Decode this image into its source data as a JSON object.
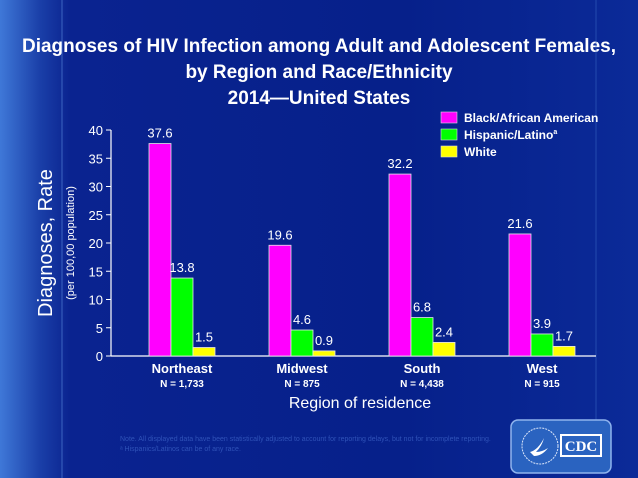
{
  "title_lines": [
    "Diagnoses of HIV Infection among Adult and Adolescent Females,",
    "by Region and Race/Ethnicity",
    "2014—United States"
  ],
  "chart_data": {
    "type": "bar",
    "categories": [
      "Northeast",
      "Midwest",
      "South",
      "West"
    ],
    "category_notes": [
      "N = 1,733",
      "N = 875",
      "N = 4,438",
      "N = 915"
    ],
    "series": [
      {
        "name": "Black/African American",
        "color": "#ff00ff",
        "values": [
          37.6,
          19.6,
          32.2,
          21.6
        ]
      },
      {
        "name": "Hispanic/Latino",
        "name_superscript": "a",
        "color": "#00ff00",
        "values": [
          13.8,
          4.6,
          6.8,
          3.9
        ]
      },
      {
        "name": "White",
        "color": "#ffff00",
        "values": [
          1.5,
          0.9,
          2.4,
          1.7
        ]
      }
    ],
    "ylabel": "Diagnoses, Rate",
    "ylabel_sub": "(per 100,00 population)",
    "xlabel": "Region of residence",
    "ylim": [
      0,
      40
    ],
    "yticks": [
      0,
      5,
      10,
      15,
      20,
      25,
      30,
      35,
      40
    ],
    "grid": false,
    "legend_placement": "top-right",
    "data_labels": true
  },
  "footnotes": [
    "Note. All displayed data have been statistically adjusted to account for reporting delays, but not for incomplete reporting.",
    "ᵃ Hispanics/Latinos can be of any race."
  ],
  "logo": {
    "text": "CDC"
  }
}
